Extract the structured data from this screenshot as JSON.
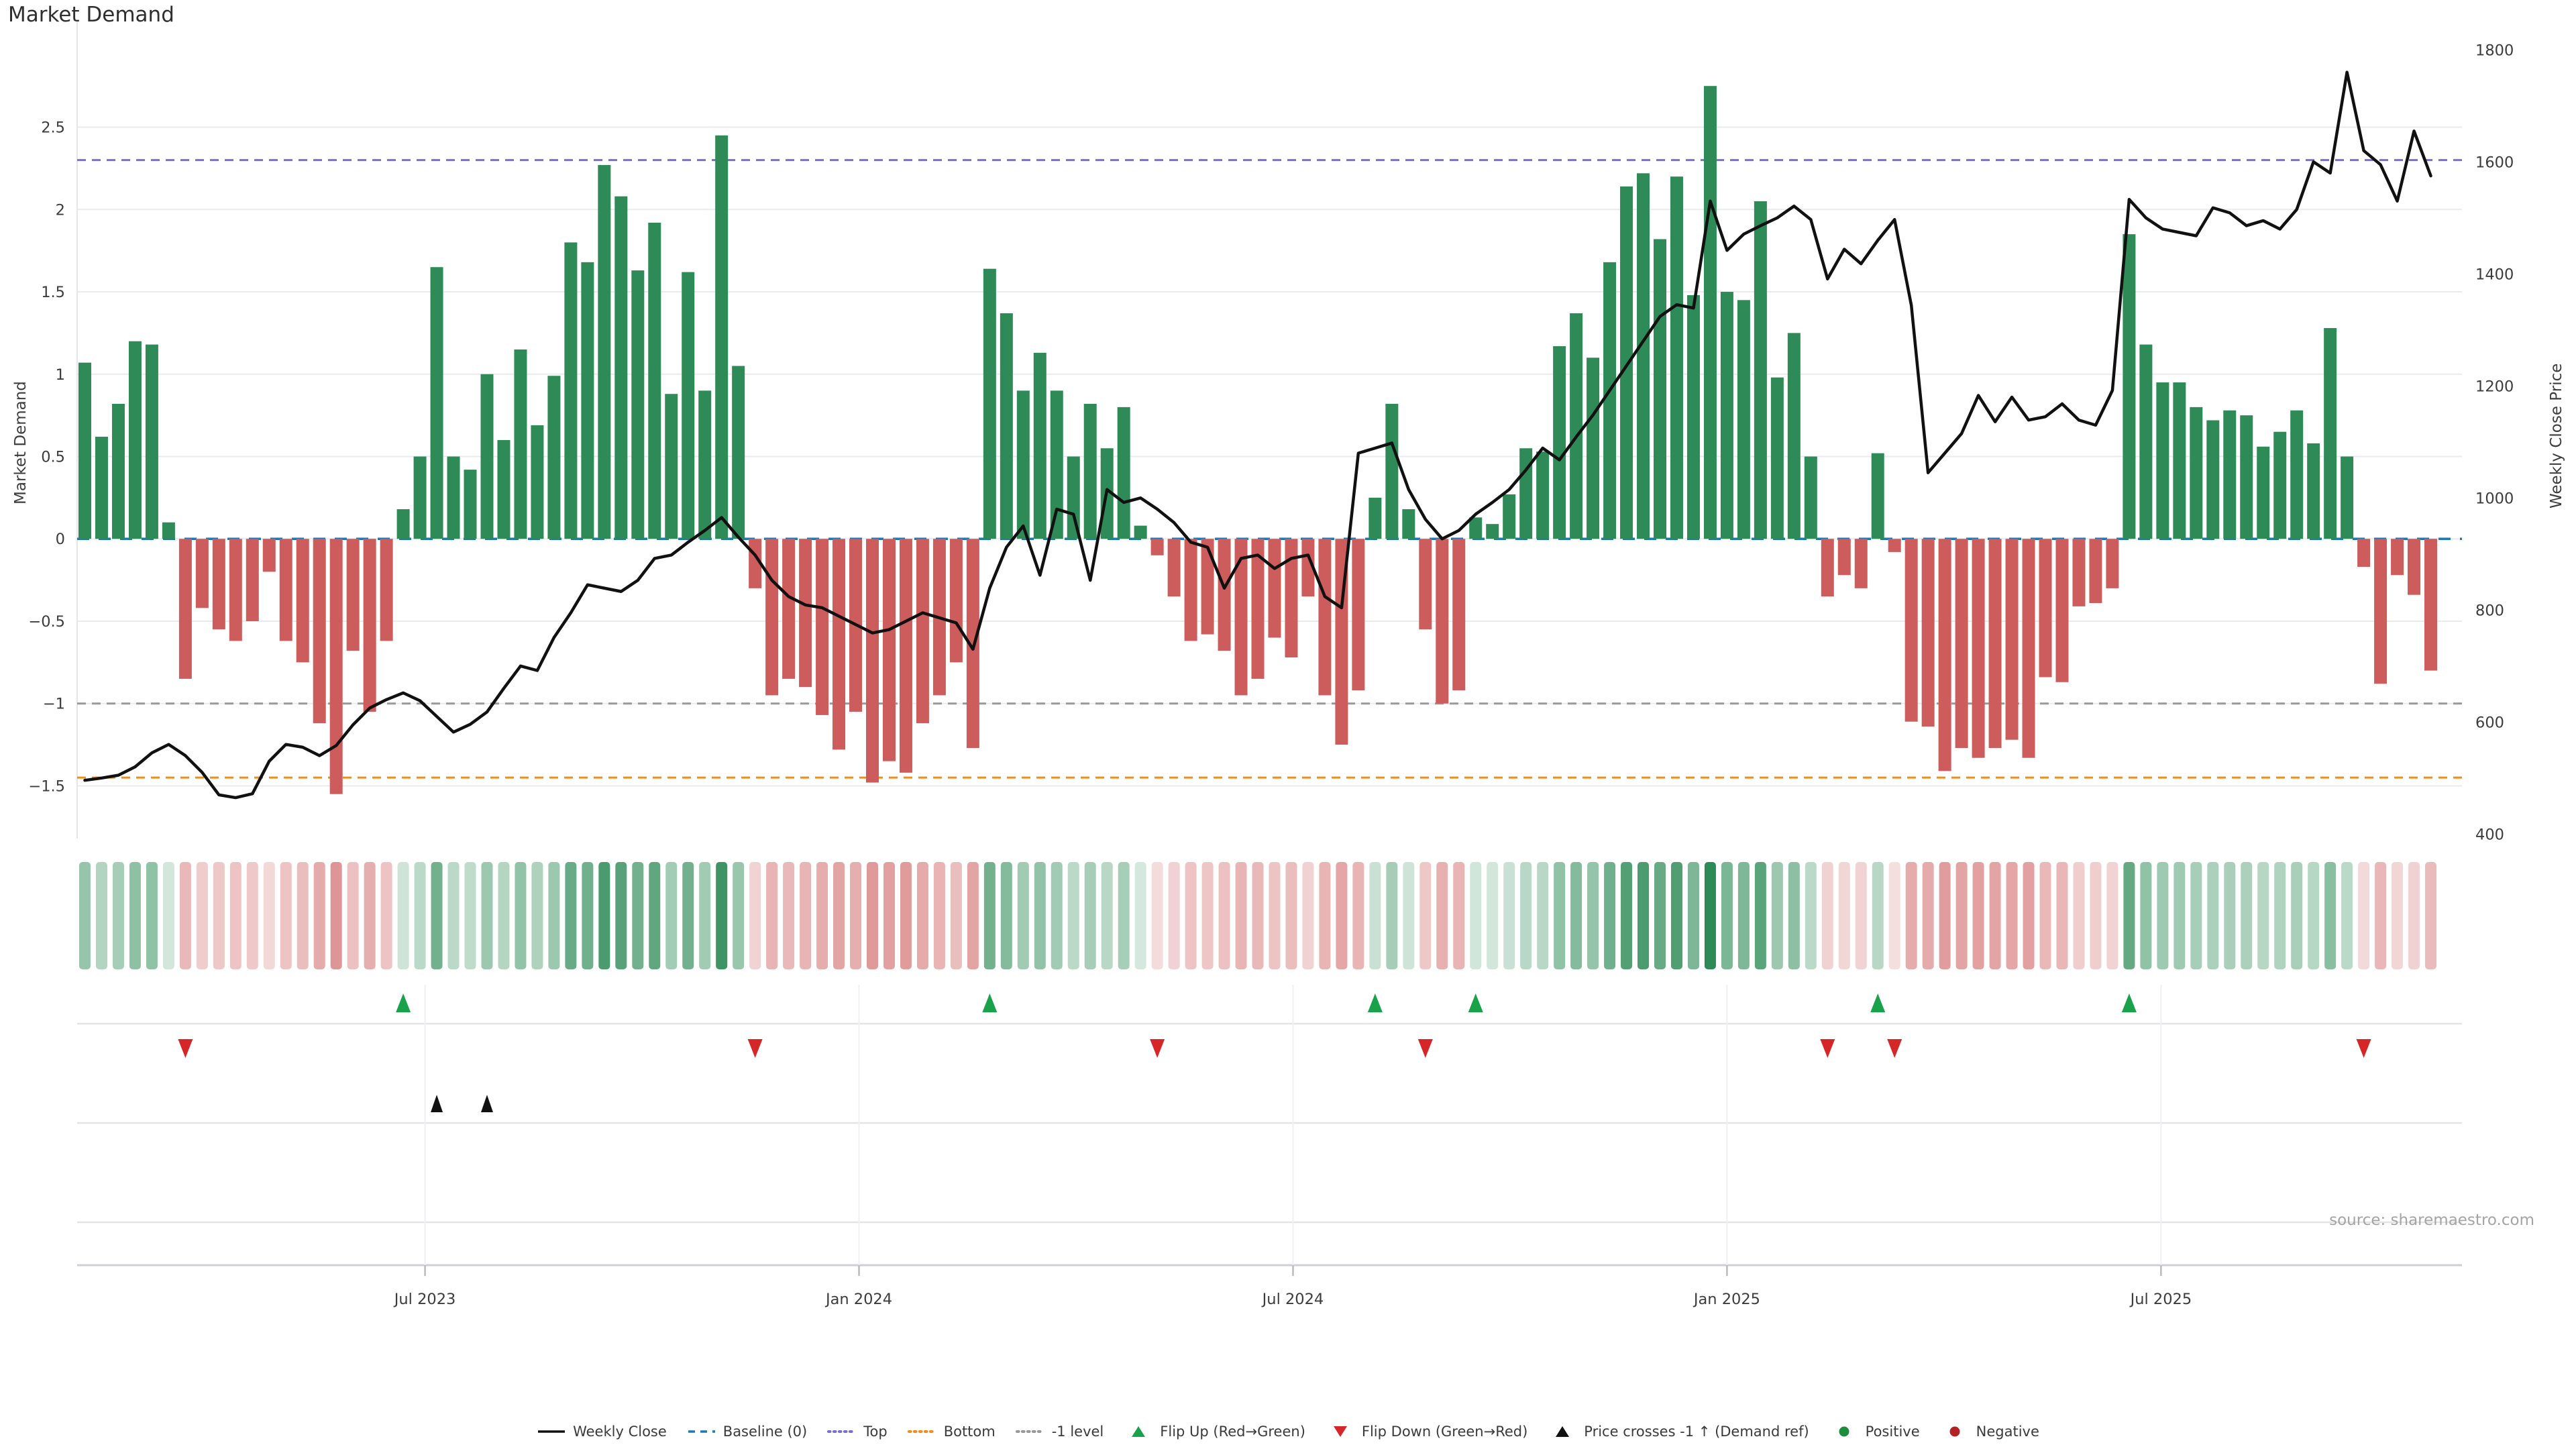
{
  "title": "Market Demand",
  "source_note": "source: sharemaestro.com",
  "axes": {
    "left": {
      "title": "Market Demand",
      "ticks": [
        2.5,
        2,
        1.5,
        1,
        0.5,
        0,
        -0.5,
        -1,
        -1.5
      ]
    },
    "right": {
      "title": "Weekly Close Price",
      "ticks": [
        1800,
        1600,
        1400,
        1200,
        1000,
        800,
        600,
        400
      ]
    },
    "x": {
      "ticks": [
        {
          "label": "Jul 2023",
          "week": 20.3
        },
        {
          "label": "Jan 2024",
          "week": 46.2
        },
        {
          "label": "Jul 2024",
          "week": 72.1
        },
        {
          "label": "Jan 2025",
          "week": 98.0
        },
        {
          "label": "Jul 2025",
          "week": 123.9
        }
      ]
    }
  },
  "chart_data": {
    "type": "bar+line",
    "x_unit": "week",
    "title": "Market Demand",
    "ylim_demand": [
      -1.82,
      3.15
    ],
    "ylim_price": [
      392,
      1853
    ],
    "grid": "horizontal, every 0.5 demand units",
    "legend_position": "bottom",
    "series": [
      {
        "name": "Market Demand",
        "type": "bar",
        "axis": "left",
        "values": [
          1.07,
          0.62,
          0.82,
          1.2,
          1.18,
          0.1,
          -0.85,
          -0.42,
          -0.55,
          -0.62,
          -0.5,
          -0.2,
          -0.62,
          -0.75,
          -1.12,
          -1.55,
          -0.68,
          -1.05,
          -0.62,
          0.18,
          0.5,
          1.65,
          0.5,
          0.42,
          1.0,
          0.6,
          1.15,
          0.69,
          0.99,
          1.8,
          1.68,
          2.27,
          2.08,
          1.63,
          1.92,
          0.88,
          1.62,
          0.9,
          2.45,
          1.05,
          -0.3,
          -0.95,
          -0.85,
          -0.9,
          -1.07,
          -1.28,
          -1.05,
          -1.48,
          -1.35,
          -1.42,
          -1.12,
          -0.95,
          -0.75,
          -1.27,
          1.64,
          1.37,
          0.9,
          1.13,
          0.9,
          0.5,
          0.82,
          0.55,
          0.8,
          0.08,
          -0.1,
          -0.35,
          -0.62,
          -0.58,
          -0.68,
          -0.95,
          -0.85,
          -0.6,
          -0.72,
          -0.35,
          -0.95,
          -1.25,
          -0.92,
          0.25,
          0.82,
          0.18,
          -0.55,
          -1.0,
          -0.92,
          0.13,
          0.09,
          0.27,
          0.55,
          0.53,
          1.17,
          1.37,
          1.1,
          1.68,
          2.14,
          2.22,
          1.82,
          2.2,
          1.48,
          2.75,
          1.5,
          1.45,
          2.05,
          0.98,
          1.25,
          0.5,
          -0.35,
          -0.22,
          -0.3,
          0.52,
          -0.08,
          -1.11,
          -1.14,
          -1.41,
          -1.27,
          -1.33,
          -1.27,
          -1.22,
          -1.33,
          -0.84,
          -0.87,
          -0.41,
          -0.39,
          -0.3,
          1.85,
          1.18,
          0.95,
          0.95,
          0.8,
          0.72,
          0.78,
          0.75,
          0.56,
          0.65,
          0.78,
          0.58,
          1.28,
          0.5,
          -0.17,
          -0.88,
          -0.22,
          -0.34,
          -0.8
        ]
      },
      {
        "name": "Weekly Close",
        "type": "line",
        "axis": "right",
        "values": [
          496,
          500,
          505,
          520,
          545,
          560,
          540,
          510,
          470,
          465,
          472,
          530,
          560,
          555,
          540,
          558,
          595,
          625,
          640,
          652,
          638,
          610,
          582,
          596,
          618,
          660,
          700,
          692,
          751,
          795,
          845,
          839,
          833,
          853,
          892,
          898,
          921,
          942,
          965,
          930,
          898,
          853,
          824,
          809,
          804,
          789,
          774,
          759,
          765,
          780,
          795,
          786,
          777,
          730,
          839,
          912,
          950,
          862,
          980,
          971,
          853,
          1015,
          992,
          1000,
          980,
          956,
          921,
          912,
          839,
          892,
          898,
          874,
          892,
          898,
          824,
          804,
          1080,
          1089,
          1098,
          1015,
          962,
          927,
          942,
          971,
          992,
          1015,
          1050,
          1089,
          1068,
          1109,
          1148,
          1192,
          1236,
          1280,
          1324,
          1345,
          1339,
          1530,
          1442,
          1471,
          1486,
          1500,
          1521,
          1497,
          1391,
          1444,
          1418,
          1460,
          1497,
          1344,
          1045,
          1080,
          1115,
          1183,
          1136,
          1180,
          1139,
          1145,
          1168,
          1139,
          1130,
          1192,
          1533,
          1500,
          1480,
          1474,
          1468,
          1518,
          1509,
          1486,
          1495,
          1480,
          1515,
          1600,
          1580,
          1760,
          1620,
          1595,
          1530,
          1655,
          1575
        ]
      }
    ],
    "reference_lines": {
      "baseline": 0,
      "top": 2.3,
      "bottom": -1.45,
      "minus_one_level": -1
    },
    "signals": {
      "flip_up_weeks": [
        19,
        54,
        77,
        83,
        107,
        122
      ],
      "flip_down_weeks": [
        6,
        40,
        64,
        80,
        104,
        108,
        136
      ],
      "price_cross_minus1_weeks": [
        21,
        24
      ]
    },
    "heatmap": "same values as Market Demand bars; green/red shade intensity proportional to |value|"
  },
  "legend": [
    {
      "label": "Weekly Close",
      "glyph": "line",
      "color": "#111111"
    },
    {
      "label": "Baseline (0)",
      "glyph": "dashed",
      "color": "#1f77b4"
    },
    {
      "label": "Top",
      "glyph": "dotted",
      "color": "#7a6fd0"
    },
    {
      "label": "Bottom",
      "glyph": "dotted",
      "color": "#ef8e1b"
    },
    {
      "label": "-1 level",
      "glyph": "dotted",
      "color": "#999999"
    },
    {
      "label": "Flip Up (Red→Green)",
      "glyph": "triangle-up",
      "color": "#19a24a"
    },
    {
      "label": "Flip Down (Green→Red)",
      "glyph": "triangle-down",
      "color": "#d62728"
    },
    {
      "label": "Price crosses -1 ↑ (Demand ref)",
      "glyph": "triangle-up",
      "color": "#111111"
    },
    {
      "label": "Positive",
      "glyph": "circle",
      "color": "#1f8b3d"
    },
    {
      "label": "Negative",
      "glyph": "circle",
      "color": "#b22222"
    }
  ],
  "colors": {
    "positive_bar": "#2e8b57",
    "negative_bar": "#cd5c5c",
    "price_line": "#111111",
    "baseline": "#1f77b4",
    "top_line": "#7a6fd0",
    "bottom_line": "#ef8e1b",
    "minus_one_line": "#999999",
    "flip_up": "#19a24a",
    "flip_down": "#d62728",
    "price_cross": "#111111",
    "grid": "#ebebef",
    "panel_grid": "#e3e3e8",
    "axis_line": "#cfcfd4",
    "axis_text": "#3c3c3c",
    "muted_text": "#a4a4a4"
  }
}
